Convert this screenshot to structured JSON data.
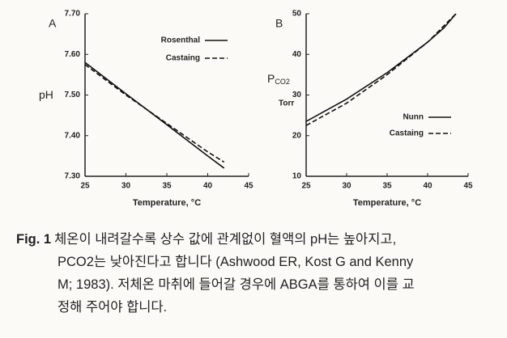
{
  "chart_data": [
    {
      "type": "line",
      "panel": "A",
      "xlabel": "Temperature, °C",
      "ylabel": [
        "pH"
      ],
      "x": [
        25,
        30,
        35,
        40,
        42
      ],
      "series": [
        {
          "name": "Rosenthal",
          "color": "#111111",
          "style": "solid",
          "values": [
            7.58,
            7.503,
            7.427,
            7.35,
            7.32
          ]
        },
        {
          "name": "Castaing",
          "color": "#111111",
          "style": "dashed",
          "values": [
            7.575,
            7.5,
            7.43,
            7.36,
            7.335
          ]
        }
      ],
      "xlim": [
        25,
        45
      ],
      "xticks": [
        25,
        30,
        35,
        40,
        45
      ],
      "ylim": [
        7.3,
        7.7
      ],
      "yticks": [
        {
          "value": 7.3,
          "label": "7.30"
        },
        {
          "value": 7.4,
          "label": "7.40"
        },
        {
          "value": 7.5,
          "label": "7.50"
        },
        {
          "value": 7.6,
          "label": "7.60"
        },
        {
          "value": 7.7,
          "label": "7.70"
        }
      ],
      "legend": "upper right",
      "grid": false
    },
    {
      "type": "line",
      "panel": "B",
      "xlabel": "Temperature, °C",
      "ylabel": [
        "P",
        "CO2"
      ],
      "yunit": "Torr",
      "x": [
        25,
        30,
        35,
        40,
        42,
        43.5
      ],
      "series": [
        {
          "name": "Nunn",
          "color": "#111111",
          "style": "solid",
          "values": [
            23.5,
            29,
            35.5,
            43,
            46.5,
            50
          ]
        },
        {
          "name": "Castaing",
          "color": "#111111",
          "style": "dashed",
          "values": [
            22.5,
            28,
            35,
            43,
            47,
            50
          ]
        }
      ],
      "xlim": [
        25,
        45
      ],
      "xticks": [
        25,
        30,
        35,
        40,
        45
      ],
      "ylim": [
        10,
        50
      ],
      "yticks": [
        10,
        20,
        30,
        40,
        50
      ],
      "legend": "lower right",
      "grid": false
    }
  ],
  "caption": {
    "label": "Fig. 1",
    "lines": [
      "체온이 내려갈수록 상수 값에 관계없이 혈액의 pH는 높아지고,",
      "PCO2는 낮아진다고 합니다 (Ashwood ER, Kost G and Kenny",
      "M; 1983). 저체온 마취에 들어갈 경우에 ABGA를 통하여 이를 교",
      "정해 주어야 합니다."
    ]
  }
}
